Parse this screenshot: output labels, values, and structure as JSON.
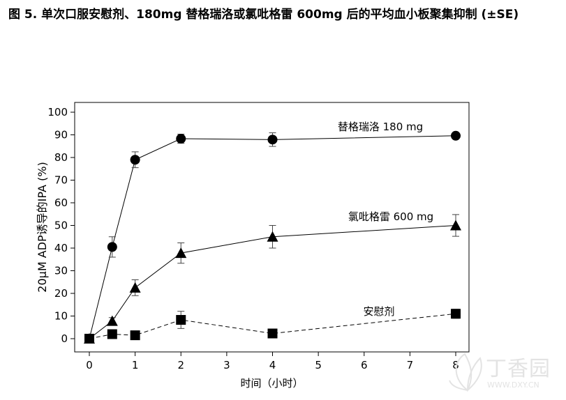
{
  "figure": {
    "title": "图 5. 单次口服安慰剂、180mg 替格瑞洛或氯吡格雷 600mg 后的平均血小板聚集抑制 (±SE)"
  },
  "watermark": {
    "text": "丁香园",
    "url": "WWW.DXY.CN"
  },
  "chart_data": {
    "type": "line",
    "title": "",
    "xlabel": "时间（小时）",
    "ylabel": "20μM ADP诱导的IPA (%)",
    "xlim": [
      0,
      8
    ],
    "ylim": [
      0,
      100
    ],
    "xticks": [
      "0",
      "1",
      "2",
      "3",
      "4",
      "5",
      "6",
      "7",
      "8"
    ],
    "yticks": [
      "0",
      "10",
      "20",
      "30",
      "40",
      "50",
      "60",
      "70",
      "80",
      "90",
      "100"
    ],
    "grid": false,
    "legend": "inline labels",
    "colors": {
      "axis": "#000000",
      "series": "#000000",
      "error_bar": "#444444",
      "marker": "#000000"
    },
    "series": [
      {
        "name": "替格瑞洛 180 mg",
        "marker": "circle",
        "line_style": "solid",
        "x": [
          0,
          0.5,
          1,
          2,
          4,
          8
        ],
        "y": [
          0,
          40.5,
          79,
          88.3,
          87.9,
          89.6
        ],
        "error": [
          0,
          4.5,
          3.5,
          2,
          3,
          1
        ]
      },
      {
        "name": "氯吡格雷 600 mg",
        "marker": "triangle",
        "line_style": "solid",
        "x": [
          0,
          0.5,
          1,
          2,
          4,
          8
        ],
        "y": [
          0,
          7.8,
          22.5,
          37.8,
          45,
          50
        ],
        "error": [
          0,
          1.5,
          3.5,
          4.5,
          5,
          4.8
        ]
      },
      {
        "name": "安慰剂",
        "marker": "square",
        "line_style": "dashed",
        "x": [
          0,
          0.5,
          1,
          2,
          4,
          8
        ],
        "y": [
          0,
          2,
          1.5,
          8.3,
          2.3,
          11
        ],
        "error": [
          0,
          1,
          1,
          3.8,
          1,
          2
        ]
      }
    ]
  }
}
